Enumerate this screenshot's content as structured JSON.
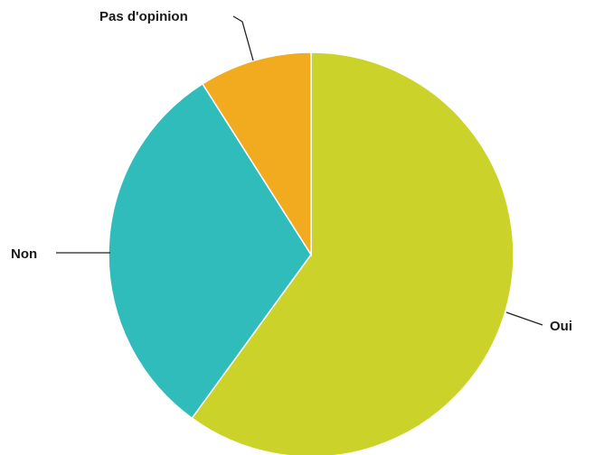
{
  "chart_data": {
    "type": "pie",
    "title": "",
    "categories": [
      "Oui",
      "Non",
      "Pas d'opinion"
    ],
    "values": [
      60,
      31,
      9
    ],
    "colors": [
      "#cbd32a",
      "#31bcbc",
      "#f2ab1f"
    ],
    "legend": "none",
    "labels_position": "outside-with-leader-lines"
  }
}
